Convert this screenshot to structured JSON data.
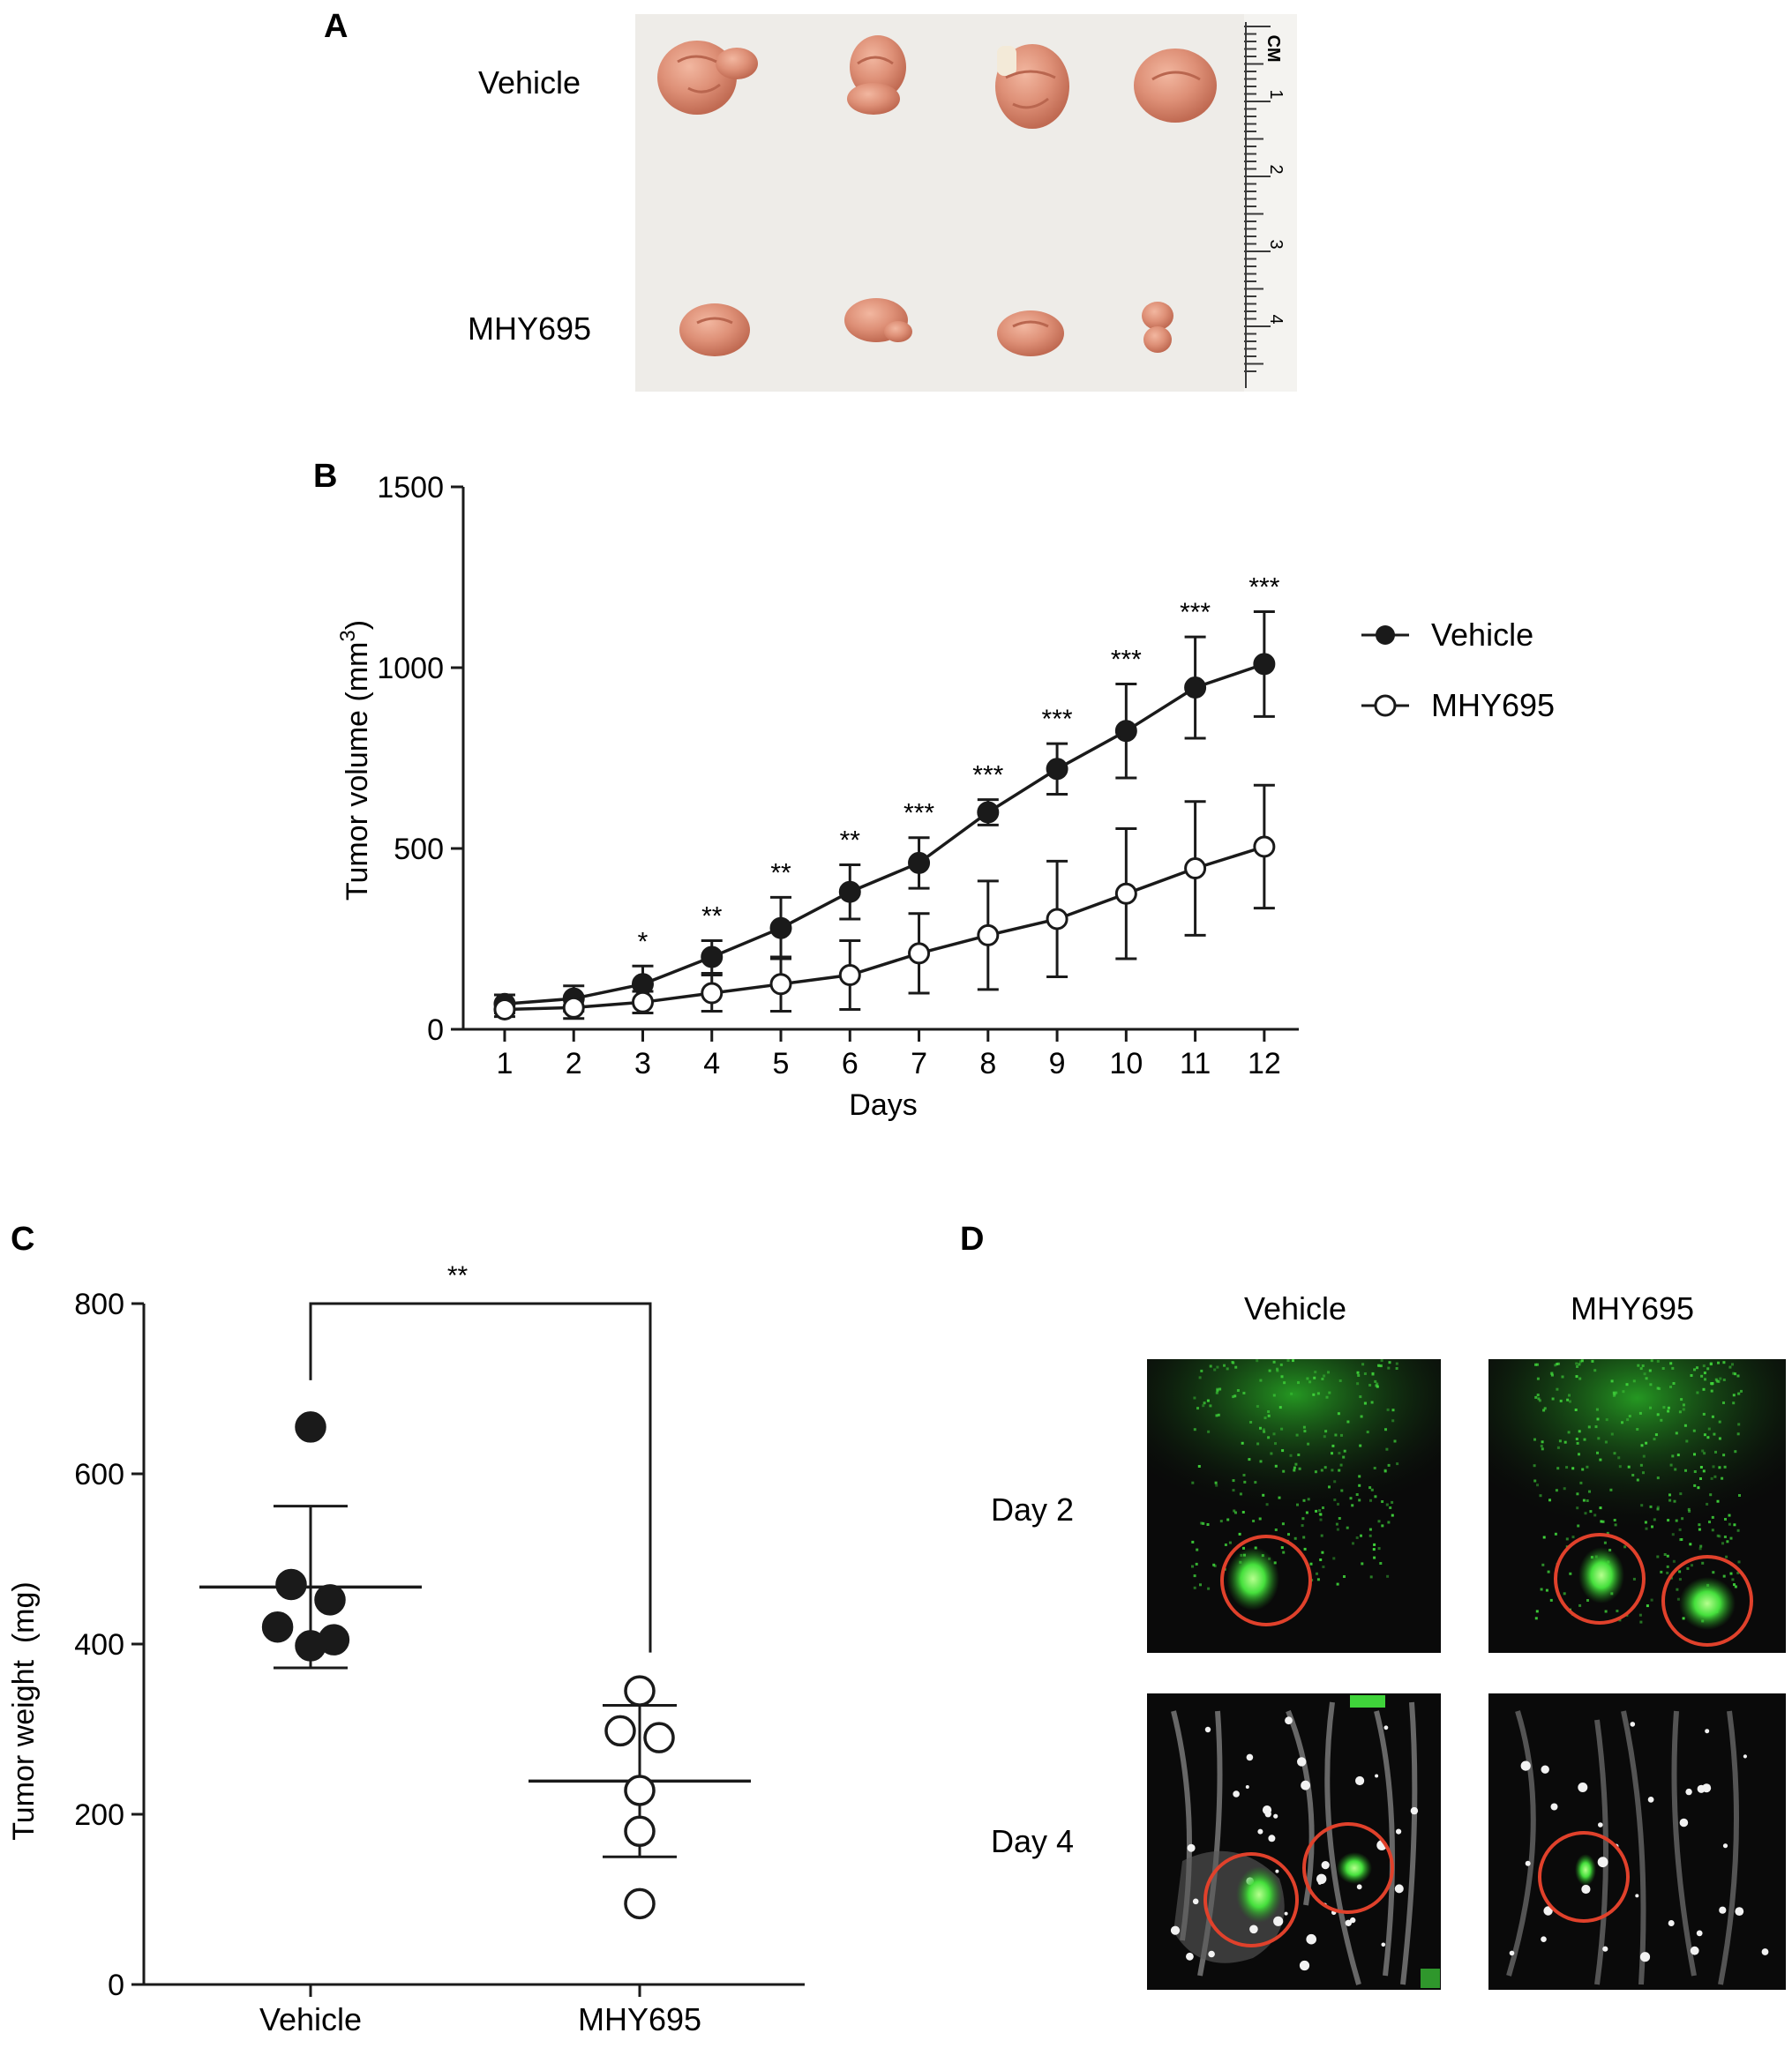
{
  "panels": {
    "A": {
      "letter": "A",
      "row_labels": [
        "Vehicle",
        "MHY695"
      ],
      "ruler": {
        "unit": "CM",
        "ticks": [
          "1",
          "2",
          "3",
          "4"
        ]
      },
      "colors": {
        "background": "#eeece8",
        "tumor": "#d98a72",
        "tumor_dark": "#b9664f"
      }
    },
    "D": {
      "letter": "D",
      "column_labels": [
        "Vehicle",
        "MHY695"
      ],
      "row_labels": [
        "Day 2",
        "Day 4"
      ],
      "colors": {
        "background": "#0a0a0a",
        "signal": "#3fd33a",
        "circle": "#e0412b",
        "tissue": "#bfbfbf"
      }
    }
  },
  "chart_data": [
    {
      "panel": "B",
      "type": "line",
      "xlabel": "Days",
      "ylabel": "Tumor volume (mm3)",
      "ylabel_parts": {
        "base": "Tumor volume (mm",
        "sup": "3",
        "end": ")"
      },
      "x": [
        1,
        2,
        3,
        4,
        5,
        6,
        7,
        8,
        9,
        10,
        11,
        12
      ],
      "xlim": [
        0.4,
        12.5
      ],
      "ylim": [
        0,
        1500
      ],
      "yticks": [
        0,
        500,
        1000,
        1500
      ],
      "grid": false,
      "legend_position": "right",
      "series": [
        {
          "name": "Vehicle",
          "marker": "filled-circle",
          "values": [
            70,
            85,
            125,
            200,
            280,
            380,
            460,
            600,
            720,
            825,
            945,
            1010
          ],
          "errors": [
            25,
            35,
            50,
            45,
            85,
            75,
            70,
            35,
            70,
            130,
            140,
            145
          ]
        },
        {
          "name": "MHY695",
          "marker": "open-circle",
          "values": [
            55,
            60,
            75,
            100,
            125,
            150,
            210,
            260,
            305,
            375,
            445,
            505
          ],
          "errors": [
            20,
            30,
            30,
            50,
            75,
            95,
            110,
            150,
            160,
            180,
            185,
            170
          ]
        }
      ],
      "significance": [
        "",
        "",
        "*",
        "**",
        "**",
        "**",
        "***",
        "***",
        "***",
        "***",
        "***",
        "***"
      ]
    },
    {
      "panel": "C",
      "type": "scatter",
      "ylabel": "Tumor weight  (mg)",
      "categories": [
        "Vehicle",
        "MHY695"
      ],
      "ylim": [
        0,
        800
      ],
      "yticks": [
        0,
        200,
        400,
        600,
        800
      ],
      "series": [
        {
          "marker": "filled-circle",
          "points": [
            655,
            470,
            452,
            420,
            405,
            398
          ],
          "mean": 467,
          "sd_upper": 562,
          "sd_lower": 372
        },
        {
          "marker": "open-circle",
          "points": [
            345,
            298,
            290,
            228,
            180,
            95
          ],
          "mean": 239,
          "sd_upper": 328,
          "sd_lower": 150
        }
      ],
      "comparison": {
        "label": "**",
        "bracket_top": 800
      }
    }
  ]
}
